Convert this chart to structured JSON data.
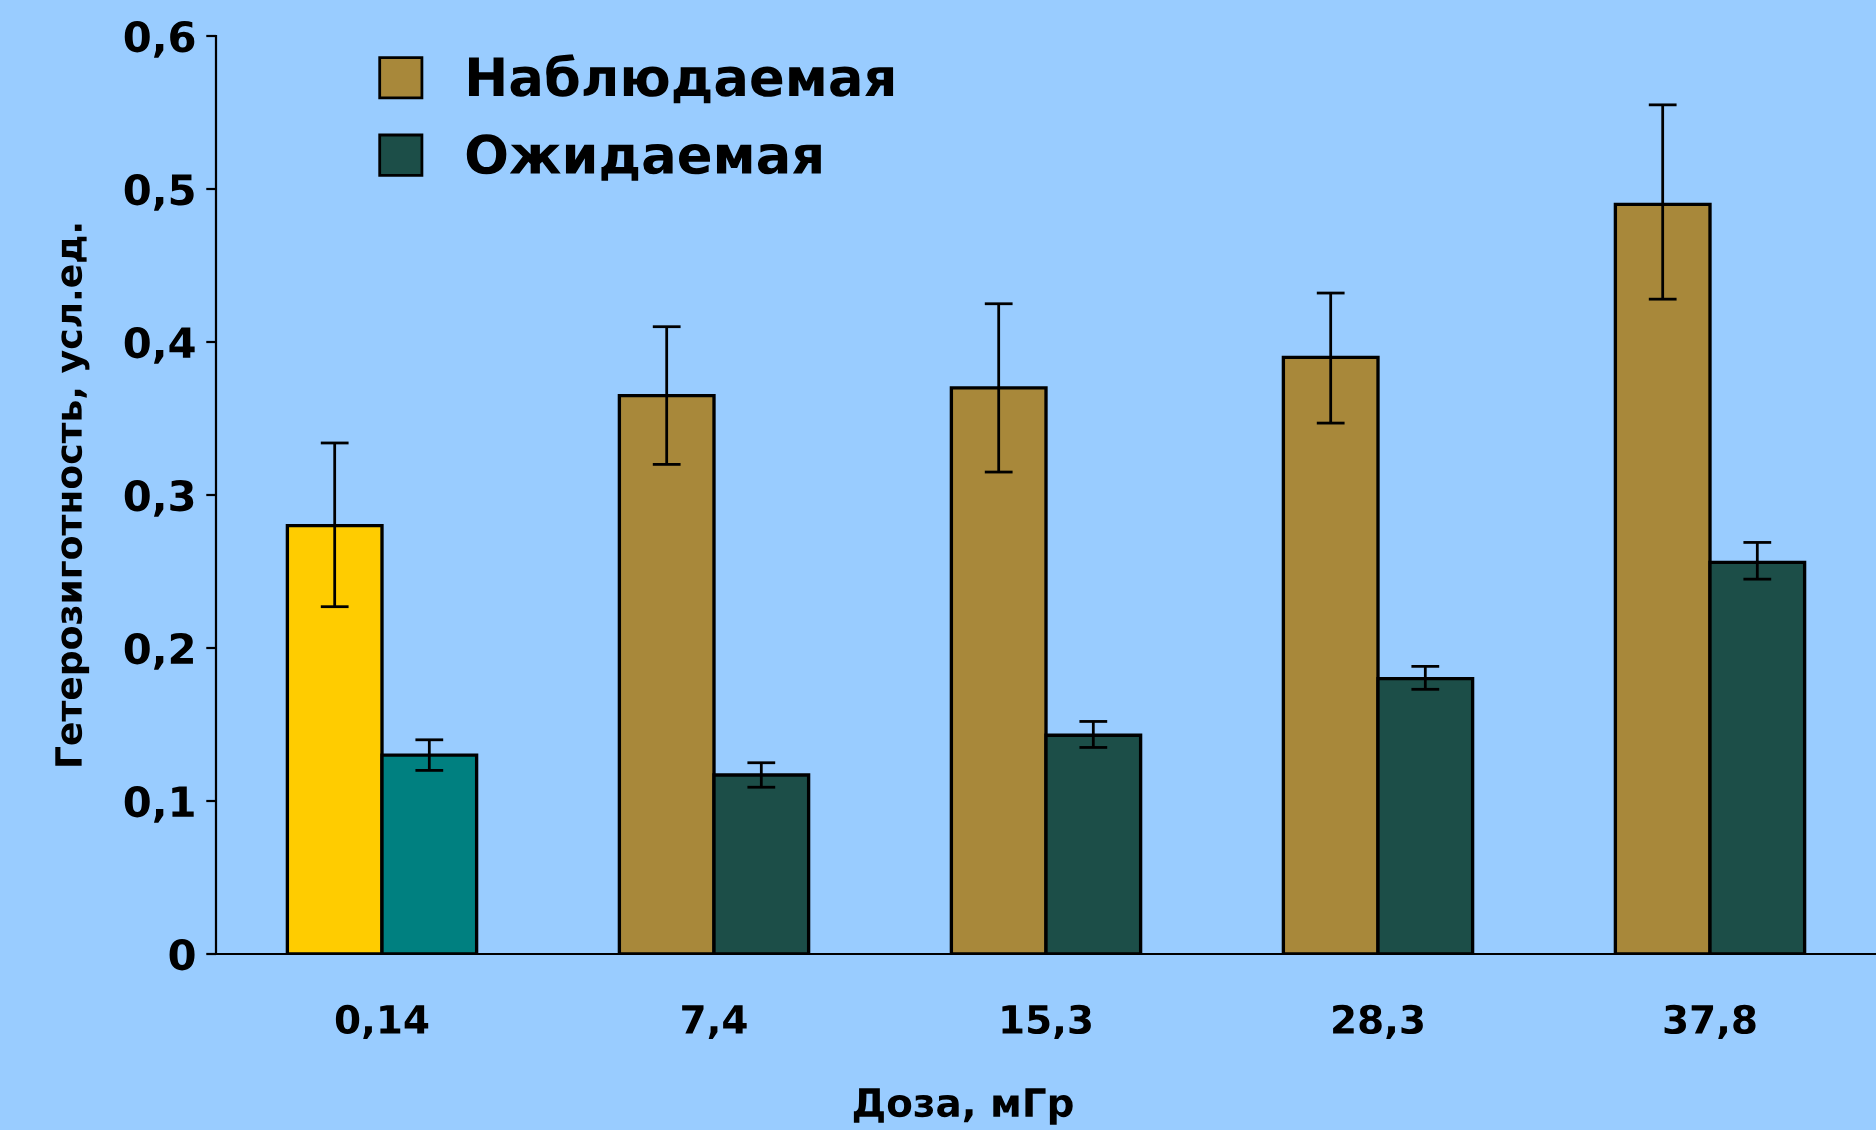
{
  "chart_data": {
    "type": "bar",
    "xlabel": "Доза, мГр",
    "ylabel": "Гетерозиготность, усл.ед.",
    "categories": [
      "0,14",
      "7,4",
      "15,3",
      "28,3",
      "37,8"
    ],
    "series": [
      {
        "name": "Наблюдаемая",
        "color": "#a8883a",
        "colors": [
          "#ffcc00",
          "#a8883a",
          "#a8883a",
          "#a8883a",
          "#a8883a"
        ],
        "values": [
          0.28,
          0.365,
          0.37,
          0.39,
          0.49
        ],
        "errors": [
          [
            0.227,
            0.334
          ],
          [
            0.32,
            0.41
          ],
          [
            0.315,
            0.425
          ],
          [
            0.347,
            0.432
          ],
          [
            0.428,
            0.555
          ]
        ]
      },
      {
        "name": "Ожидаемая",
        "color": "#1c4e48",
        "colors": [
          "#008080",
          "#1c4e48",
          "#1c4e48",
          "#1c4e48",
          "#1c4e48"
        ],
        "values": [
          0.13,
          0.117,
          0.143,
          0.18,
          0.256
        ],
        "errors": [
          [
            0.12,
            0.14
          ],
          [
            0.109,
            0.125
          ],
          [
            0.135,
            0.152
          ],
          [
            0.173,
            0.188
          ],
          [
            0.245,
            0.269
          ]
        ]
      }
    ],
    "ylim": [
      0,
      0.6
    ],
    "yticks": [
      0,
      {
        "value": 0.1,
        "label": "0,1"
      },
      {
        "value": 0.2,
        "label": "0,2"
      },
      {
        "value": 0.3,
        "label": "0,3"
      },
      {
        "value": 0.4,
        "label": "0,4"
      },
      {
        "value": 0.5,
        "label": "0,5"
      },
      {
        "value": 0.6,
        "label": "0,6"
      }
    ],
    "legend": "top left",
    "grid": false
  }
}
